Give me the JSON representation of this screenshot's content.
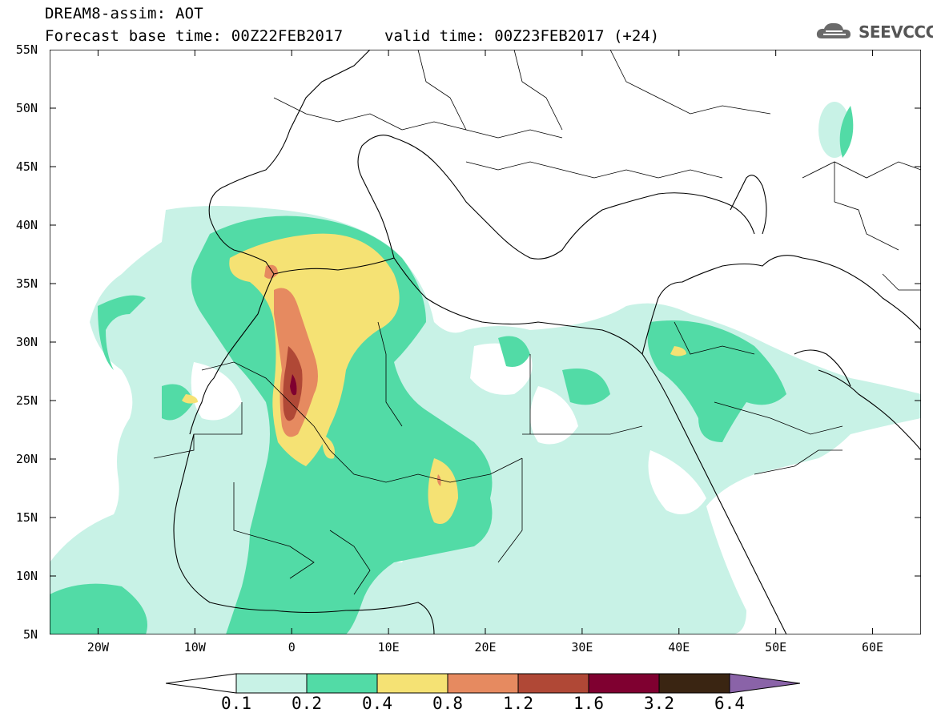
{
  "header": {
    "title_line1": "DREAM8-assim: AOT",
    "title_line2": "Forecast base time: 00Z22FEB2017",
    "valid_time": "valid time: 00Z23FEB2017 (+24)",
    "logo_text": "SEEVCCC"
  },
  "axes": {
    "lat_labels": [
      "55N",
      "50N",
      "45N",
      "40N",
      "35N",
      "30N",
      "25N",
      "20N",
      "15N",
      "10N",
      "5N"
    ],
    "lon_labels": [
      "20W",
      "10W",
      "0",
      "10E",
      "20E",
      "30E",
      "40E",
      "50E",
      "60E"
    ],
    "lon_range": [
      -25,
      65
    ],
    "lat_range": [
      5,
      55
    ]
  },
  "colorbar": {
    "labels": [
      "0.1",
      "0.2",
      "0.4",
      "0.8",
      "1.2",
      "1.6",
      "3.2",
      "6.4"
    ],
    "colors": [
      "#ffffff",
      "#c8f2e6",
      "#52dba6",
      "#f5e274",
      "#e68a60",
      "#b04836",
      "#7f0030",
      "#3a2512",
      "#8a63a8"
    ]
  }
}
